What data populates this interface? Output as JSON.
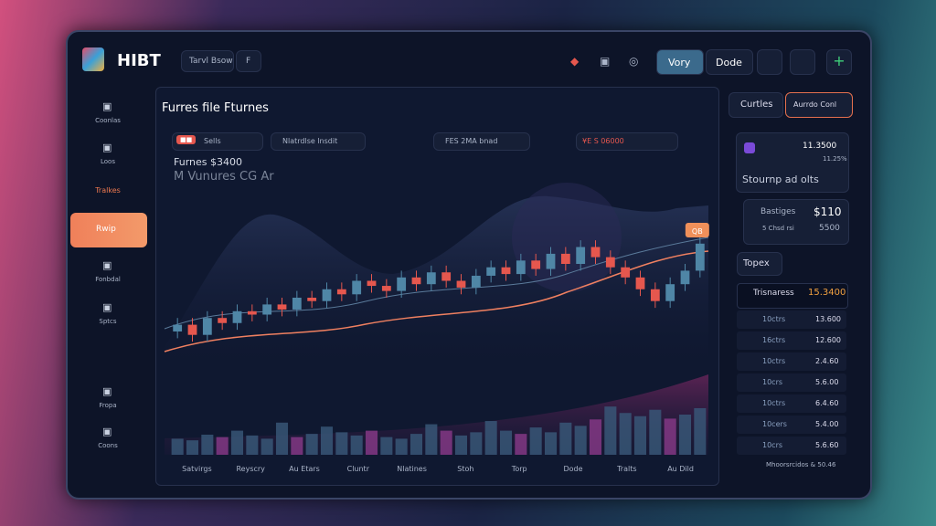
{
  "header": {
    "logo": "HIBT",
    "search": "Tarvl Bsow",
    "search_key": "F",
    "buttons": [
      "Vory",
      "Dode"
    ]
  },
  "sidebar": {
    "items": [
      "Coonlas",
      "Loos",
      "Tralkes",
      "Fonbdal",
      "Sptcs",
      "Fropa",
      "Coons"
    ],
    "active": "Rwip"
  },
  "main": {
    "title": "Furres file Fturnes",
    "chips": [
      "Sells",
      "Nlatrdlse lnsdit",
      "FES 2MA bnad",
      "¥E S 06000"
    ],
    "price": "Furnes $3400",
    "subtitle": "M Vunures CG Ar",
    "badge": "QB",
    "chart_data": {
      "type": "candlestick",
      "up_color": "#4f86a6",
      "down_color": "#e5574e",
      "ylim": [
        0,
        100
      ],
      "volume_ylim": [
        0,
        100
      ],
      "open": [
        20,
        24,
        18,
        28,
        25,
        32,
        30,
        36,
        33,
        40,
        38,
        45,
        42,
        50,
        47,
        44,
        52,
        48,
        55,
        50,
        46,
        53,
        58,
        54,
        62,
        57,
        66,
        60,
        70,
        64,
        58,
        52,
        45,
        38,
        48,
        56
      ],
      "close": [
        24,
        18,
        28,
        25,
        32,
        30,
        36,
        33,
        40,
        38,
        45,
        42,
        50,
        47,
        44,
        52,
        48,
        55,
        50,
        46,
        53,
        58,
        54,
        62,
        57,
        66,
        60,
        70,
        64,
        58,
        52,
        45,
        38,
        48,
        56,
        72
      ],
      "high": [
        28,
        28,
        32,
        32,
        36,
        36,
        40,
        40,
        44,
        44,
        49,
        49,
        54,
        54,
        51,
        56,
        56,
        59,
        59,
        54,
        57,
        62,
        62,
        66,
        66,
        70,
        70,
        74,
        74,
        68,
        62,
        56,
        49,
        52,
        60,
        76
      ],
      "low": [
        16,
        14,
        14,
        21,
        21,
        26,
        26,
        29,
        29,
        34,
        34,
        38,
        38,
        43,
        40,
        40,
        44,
        44,
        46,
        42,
        42,
        49,
        50,
        50,
        53,
        53,
        56,
        56,
        60,
        54,
        48,
        41,
        34,
        34,
        44,
        52
      ],
      "volume": [
        20,
        18,
        25,
        22,
        30,
        24,
        20,
        40,
        22,
        26,
        35,
        28,
        24,
        30,
        22,
        20,
        26,
        38,
        30,
        24,
        28,
        42,
        30,
        26,
        34,
        28,
        40,
        36,
        44,
        60,
        52,
        48,
        56,
        45,
        50,
        58
      ],
      "categories": [
        "Satvirgs",
        "Reyscry",
        "Au Etars",
        "Cluntr",
        "Nlatines",
        "Stoh",
        "Torp",
        "Dode",
        "Tralts",
        "Au Dild"
      ]
    }
  },
  "right": {
    "tabs": [
      "Curtles",
      "Aurrdo Conl"
    ],
    "card1": {
      "value": "11.3500",
      "change": "11.25%",
      "label": "Stournp ad olts"
    },
    "card2": {
      "label": "Bastiges",
      "value": "$110",
      "sub": "5 Chsd rsi",
      "sub_value": "5500"
    },
    "section": "Topex",
    "table": {
      "header": [
        "Trisnaress",
        "15.3400"
      ],
      "rows": [
        [
          "10ctrs",
          "13.600"
        ],
        [
          "16ctrs",
          "12.600"
        ],
        [
          "10ctrs",
          "2.4.60"
        ],
        [
          "10crs",
          "5.6.00"
        ],
        [
          "10ctrs",
          "6.4.60"
        ],
        [
          "10cers",
          "5.4.00"
        ],
        [
          "10crs",
          "5.6.60"
        ]
      ],
      "footer": "Mhoorsrcidos & 50.46"
    }
  }
}
